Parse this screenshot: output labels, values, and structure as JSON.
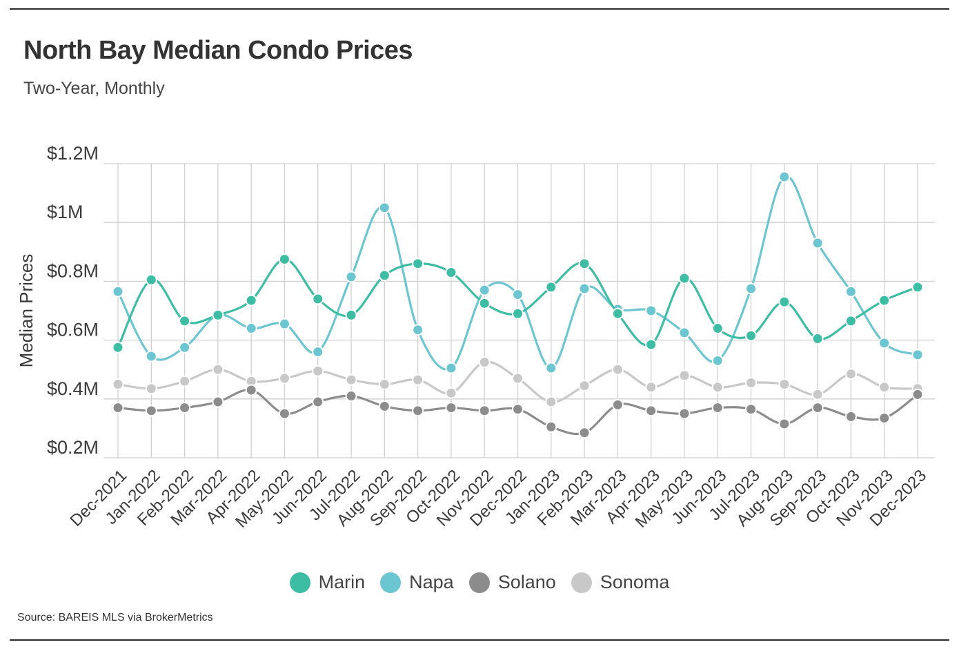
{
  "header": {
    "title": "North Bay Median Condo Prices",
    "subtitle": "Two-Year, Monthly"
  },
  "footer": {
    "source": "Source:  BAREIS MLS via BrokerMetrics"
  },
  "chart_data": {
    "type": "line",
    "title": "North Bay Median Condo Prices",
    "subtitle": "Two-Year, Monthly",
    "xlabel": "",
    "ylabel": "Median Prices",
    "ylim": [
      200000,
      1200000
    ],
    "y_ticks": [
      200000,
      400000,
      600000,
      800000,
      1000000,
      1200000
    ],
    "y_tick_labels": [
      "$0.2M",
      "$0.4M",
      "$0.6M",
      "$0.8M",
      "$1M",
      "$1.2M"
    ],
    "grid": true,
    "legend_position": "bottom-center",
    "categories": [
      "Dec-2021",
      "Jan-2022",
      "Feb-2022",
      "Mar-2022",
      "Apr-2022",
      "May-2022",
      "Jun-2022",
      "Jul-2022",
      "Aug-2022",
      "Sep-2022",
      "Oct-2022",
      "Nov-2022",
      "Dec-2022",
      "Jan-2023",
      "Feb-2023",
      "Mar-2023",
      "Apr-2023",
      "May-2023",
      "Jun-2023",
      "Jul-2023",
      "Aug-2023",
      "Sep-2023",
      "Oct-2023",
      "Nov-2023",
      "Dec-2023"
    ],
    "series": [
      {
        "name": "Marin",
        "color": "#3dbda3",
        "values": [
          575000,
          805000,
          665000,
          685000,
          735000,
          875000,
          740000,
          685000,
          820000,
          860000,
          830000,
          725000,
          690000,
          780000,
          860000,
          690000,
          585000,
          810000,
          640000,
          615000,
          730000,
          605000,
          665000,
          735000,
          780000
        ]
      },
      {
        "name": "Napa",
        "color": "#6cc6d2",
        "values": [
          765000,
          545000,
          575000,
          685000,
          640000,
          655000,
          560000,
          815000,
          1050000,
          635000,
          505000,
          770000,
          755000,
          505000,
          775000,
          705000,
          700000,
          625000,
          530000,
          775000,
          1155000,
          930000,
          765000,
          590000,
          550000
        ]
      },
      {
        "name": "Solano",
        "color": "#8c8c8c",
        "values": [
          370000,
          360000,
          370000,
          390000,
          430000,
          350000,
          390000,
          410000,
          375000,
          360000,
          370000,
          360000,
          365000,
          305000,
          285000,
          380000,
          360000,
          350000,
          370000,
          365000,
          315000,
          370000,
          340000,
          335000,
          415000
        ]
      },
      {
        "name": "Sonoma",
        "color": "#c8c8c8",
        "values": [
          450000,
          435000,
          460000,
          500000,
          460000,
          470000,
          495000,
          465000,
          450000,
          465000,
          420000,
          525000,
          470000,
          390000,
          445000,
          500000,
          440000,
          480000,
          440000,
          455000,
          450000,
          415000,
          485000,
          440000,
          435000
        ]
      }
    ]
  }
}
